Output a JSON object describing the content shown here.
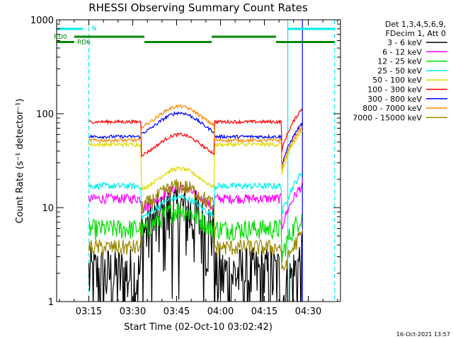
{
  "chart_data": {
    "type": "line",
    "title": "RHESSI Observing Summary Count Rates",
    "xlabel": "Start Time (02-Oct-10 03:02:42)",
    "ylabel": "Count Rate (s⁻¹ detector⁻¹)",
    "x_range": [
      "03:04",
      "04:41"
    ],
    "ylim": [
      1,
      1000
    ],
    "y_scale": "log",
    "x_ticks": [
      "03:15",
      "03:30",
      "03:45",
      "04:00",
      "04:15",
      "04:30"
    ],
    "y_ticks": [
      "1",
      "10",
      "100",
      "1000"
    ],
    "legend_header": [
      "Det 1,3,4,5,6,9,",
      "FDecim 1, Att 0"
    ],
    "legend_position": "right",
    "series": [
      {
        "name": "3 - 6 keV",
        "color": "#000000",
        "flare": 9.5,
        "base": 2.0,
        "noise": 0.9
      },
      {
        "name": "6 - 12 keV",
        "color": "#ff00ff",
        "flare": 16,
        "base": 12.5,
        "noise": 0.12
      },
      {
        "name": "12 - 25 keV",
        "color": "#00dd00",
        "flare": 9.5,
        "base": 6.0,
        "noise": 0.25
      },
      {
        "name": "25 - 50 keV",
        "color": "#00eeee",
        "flare": 13,
        "base": 17,
        "noise": 0.08
      },
      {
        "name": "50 - 100 keV",
        "color": "#dddd00",
        "flare": 26,
        "base": 47,
        "noise": 0.05
      },
      {
        "name": "100 - 300 keV",
        "color": "#ff0000",
        "flare": 60,
        "base": 82,
        "noise": 0.04
      },
      {
        "name": "300 - 800 keV",
        "color": "#0000ff",
        "flare": 102,
        "base": 57,
        "noise": 0.04
      },
      {
        "name": "800 - 7000 keV",
        "color": "#ff8800",
        "flare": 120,
        "base": 52,
        "noise": 0.04
      },
      {
        "name": "7000 - 15000 keV",
        "color": "#998800",
        "flare": 17,
        "base": 3.8,
        "noise": 0.2
      }
    ],
    "flags": [
      {
        "name": "N",
        "color": "#00eeee",
        "segments": [
          [
            "03:04",
            "03:13"
          ],
          [
            "04:23",
            "04:39"
          ]
        ]
      },
      {
        "name": "RD0",
        "color": "#008800",
        "segments": [
          [
            "03:10",
            "03:34"
          ],
          [
            "03:57",
            "04:19"
          ]
        ]
      },
      {
        "name": "RD6",
        "color": "#008800",
        "segments": [
          [
            "03:04",
            "03:10"
          ],
          [
            "03:34",
            "03:57"
          ],
          [
            "04:19",
            "04:39"
          ]
        ]
      }
    ],
    "markers": [
      {
        "time": "03:04",
        "color": "#00eeee",
        "style": "solid"
      },
      {
        "time": "03:15",
        "color": "#00eeee",
        "style": "dashed"
      },
      {
        "time": "04:23",
        "color": "#00eeee",
        "style": "solid"
      },
      {
        "time": "04:28",
        "color": "#0000ff",
        "style": "solid"
      },
      {
        "time": "04:39",
        "color": "#00eeee",
        "style": "dashed"
      }
    ]
  },
  "footer": {
    "timestamp": "16-Oct-2021 13:57"
  }
}
